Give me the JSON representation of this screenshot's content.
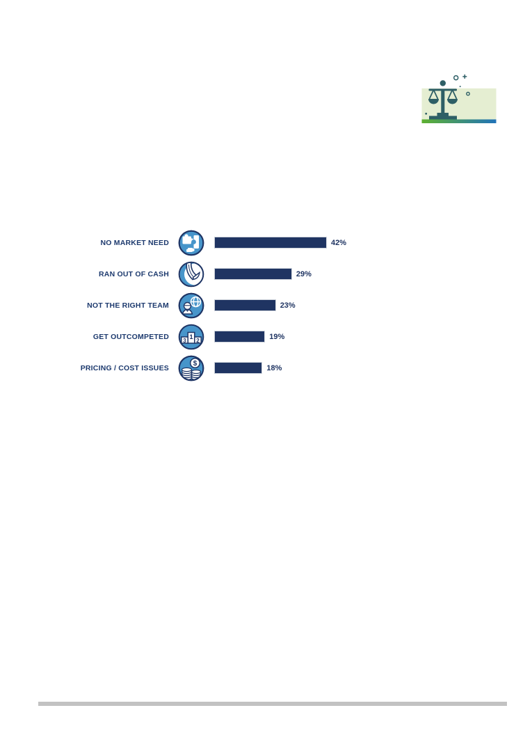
{
  "page": {
    "background": "#ffffff"
  },
  "decor": {
    "scales_graphic": {
      "icon": "balance-scale-icon",
      "panel_color": "#e5eed2",
      "glyph_color": "#2e5f66",
      "gradient_start": "#5eb130",
      "gradient_end": "#2173b9"
    },
    "footer_divider_color": "#c2c2c2"
  },
  "chart_data": {
    "type": "bar",
    "orientation": "horizontal",
    "title": "",
    "unit": "%",
    "categories": [
      "NO MARKET NEED",
      "RAN OUT OF CASH",
      "NOT THE RIGHT TEAM",
      "GET OUTCOMPETED",
      "PRICING / COST ISSUES"
    ],
    "values": [
      42,
      29,
      23,
      19,
      18
    ],
    "value_labels": [
      "42%",
      "29%",
      "23%",
      "19%",
      "18%"
    ],
    "icons": [
      "puzzle-globe-icon",
      "cash-gone-icon",
      "person-globe-icon",
      "podium-ranking-icon",
      "coins-dollar-icon"
    ],
    "icon_details": {
      "podium_ranks": [
        "3",
        "1",
        "2"
      ],
      "dollar_symbol": "$"
    },
    "xlim": [
      0,
      45
    ],
    "grid": false,
    "legend": "none",
    "bar_color": "#1f3462",
    "label_color": "#1d3a6e",
    "icon_fill": "#4795ca",
    "icon_stroke": "#1f3565"
  }
}
